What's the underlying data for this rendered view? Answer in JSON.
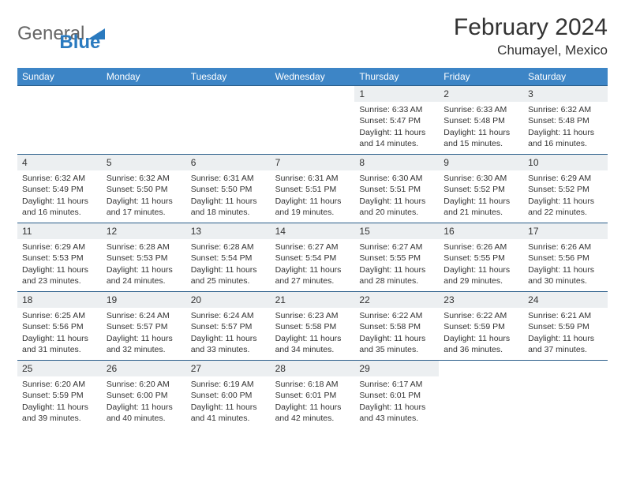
{
  "brand": {
    "part1": "General",
    "part2": "Blue"
  },
  "title": "February 2024",
  "location": "Chumayel, Mexico",
  "colors": {
    "header_bg": "#3d85c6",
    "header_text": "#ffffff",
    "week_border": "#2a5d8a",
    "daynum_bg": "#eceff1",
    "text": "#333333",
    "brand_blue": "#2a7abf"
  },
  "day_names": [
    "Sunday",
    "Monday",
    "Tuesday",
    "Wednesday",
    "Thursday",
    "Friday",
    "Saturday"
  ],
  "weeks": [
    [
      null,
      null,
      null,
      null,
      {
        "n": "1",
        "sr": "Sunrise: 6:33 AM",
        "ss": "Sunset: 5:47 PM",
        "d1": "Daylight: 11 hours",
        "d2": "and 14 minutes."
      },
      {
        "n": "2",
        "sr": "Sunrise: 6:33 AM",
        "ss": "Sunset: 5:48 PM",
        "d1": "Daylight: 11 hours",
        "d2": "and 15 minutes."
      },
      {
        "n": "3",
        "sr": "Sunrise: 6:32 AM",
        "ss": "Sunset: 5:48 PM",
        "d1": "Daylight: 11 hours",
        "d2": "and 16 minutes."
      }
    ],
    [
      {
        "n": "4",
        "sr": "Sunrise: 6:32 AM",
        "ss": "Sunset: 5:49 PM",
        "d1": "Daylight: 11 hours",
        "d2": "and 16 minutes."
      },
      {
        "n": "5",
        "sr": "Sunrise: 6:32 AM",
        "ss": "Sunset: 5:50 PM",
        "d1": "Daylight: 11 hours",
        "d2": "and 17 minutes."
      },
      {
        "n": "6",
        "sr": "Sunrise: 6:31 AM",
        "ss": "Sunset: 5:50 PM",
        "d1": "Daylight: 11 hours",
        "d2": "and 18 minutes."
      },
      {
        "n": "7",
        "sr": "Sunrise: 6:31 AM",
        "ss": "Sunset: 5:51 PM",
        "d1": "Daylight: 11 hours",
        "d2": "and 19 minutes."
      },
      {
        "n": "8",
        "sr": "Sunrise: 6:30 AM",
        "ss": "Sunset: 5:51 PM",
        "d1": "Daylight: 11 hours",
        "d2": "and 20 minutes."
      },
      {
        "n": "9",
        "sr": "Sunrise: 6:30 AM",
        "ss": "Sunset: 5:52 PM",
        "d1": "Daylight: 11 hours",
        "d2": "and 21 minutes."
      },
      {
        "n": "10",
        "sr": "Sunrise: 6:29 AM",
        "ss": "Sunset: 5:52 PM",
        "d1": "Daylight: 11 hours",
        "d2": "and 22 minutes."
      }
    ],
    [
      {
        "n": "11",
        "sr": "Sunrise: 6:29 AM",
        "ss": "Sunset: 5:53 PM",
        "d1": "Daylight: 11 hours",
        "d2": "and 23 minutes."
      },
      {
        "n": "12",
        "sr": "Sunrise: 6:28 AM",
        "ss": "Sunset: 5:53 PM",
        "d1": "Daylight: 11 hours",
        "d2": "and 24 minutes."
      },
      {
        "n": "13",
        "sr": "Sunrise: 6:28 AM",
        "ss": "Sunset: 5:54 PM",
        "d1": "Daylight: 11 hours",
        "d2": "and 25 minutes."
      },
      {
        "n": "14",
        "sr": "Sunrise: 6:27 AM",
        "ss": "Sunset: 5:54 PM",
        "d1": "Daylight: 11 hours",
        "d2": "and 27 minutes."
      },
      {
        "n": "15",
        "sr": "Sunrise: 6:27 AM",
        "ss": "Sunset: 5:55 PM",
        "d1": "Daylight: 11 hours",
        "d2": "and 28 minutes."
      },
      {
        "n": "16",
        "sr": "Sunrise: 6:26 AM",
        "ss": "Sunset: 5:55 PM",
        "d1": "Daylight: 11 hours",
        "d2": "and 29 minutes."
      },
      {
        "n": "17",
        "sr": "Sunrise: 6:26 AM",
        "ss": "Sunset: 5:56 PM",
        "d1": "Daylight: 11 hours",
        "d2": "and 30 minutes."
      }
    ],
    [
      {
        "n": "18",
        "sr": "Sunrise: 6:25 AM",
        "ss": "Sunset: 5:56 PM",
        "d1": "Daylight: 11 hours",
        "d2": "and 31 minutes."
      },
      {
        "n": "19",
        "sr": "Sunrise: 6:24 AM",
        "ss": "Sunset: 5:57 PM",
        "d1": "Daylight: 11 hours",
        "d2": "and 32 minutes."
      },
      {
        "n": "20",
        "sr": "Sunrise: 6:24 AM",
        "ss": "Sunset: 5:57 PM",
        "d1": "Daylight: 11 hours",
        "d2": "and 33 minutes."
      },
      {
        "n": "21",
        "sr": "Sunrise: 6:23 AM",
        "ss": "Sunset: 5:58 PM",
        "d1": "Daylight: 11 hours",
        "d2": "and 34 minutes."
      },
      {
        "n": "22",
        "sr": "Sunrise: 6:22 AM",
        "ss": "Sunset: 5:58 PM",
        "d1": "Daylight: 11 hours",
        "d2": "and 35 minutes."
      },
      {
        "n": "23",
        "sr": "Sunrise: 6:22 AM",
        "ss": "Sunset: 5:59 PM",
        "d1": "Daylight: 11 hours",
        "d2": "and 36 minutes."
      },
      {
        "n": "24",
        "sr": "Sunrise: 6:21 AM",
        "ss": "Sunset: 5:59 PM",
        "d1": "Daylight: 11 hours",
        "d2": "and 37 minutes."
      }
    ],
    [
      {
        "n": "25",
        "sr": "Sunrise: 6:20 AM",
        "ss": "Sunset: 5:59 PM",
        "d1": "Daylight: 11 hours",
        "d2": "and 39 minutes."
      },
      {
        "n": "26",
        "sr": "Sunrise: 6:20 AM",
        "ss": "Sunset: 6:00 PM",
        "d1": "Daylight: 11 hours",
        "d2": "and 40 minutes."
      },
      {
        "n": "27",
        "sr": "Sunrise: 6:19 AM",
        "ss": "Sunset: 6:00 PM",
        "d1": "Daylight: 11 hours",
        "d2": "and 41 minutes."
      },
      {
        "n": "28",
        "sr": "Sunrise: 6:18 AM",
        "ss": "Sunset: 6:01 PM",
        "d1": "Daylight: 11 hours",
        "d2": "and 42 minutes."
      },
      {
        "n": "29",
        "sr": "Sunrise: 6:17 AM",
        "ss": "Sunset: 6:01 PM",
        "d1": "Daylight: 11 hours",
        "d2": "and 43 minutes."
      },
      null,
      null
    ]
  ]
}
